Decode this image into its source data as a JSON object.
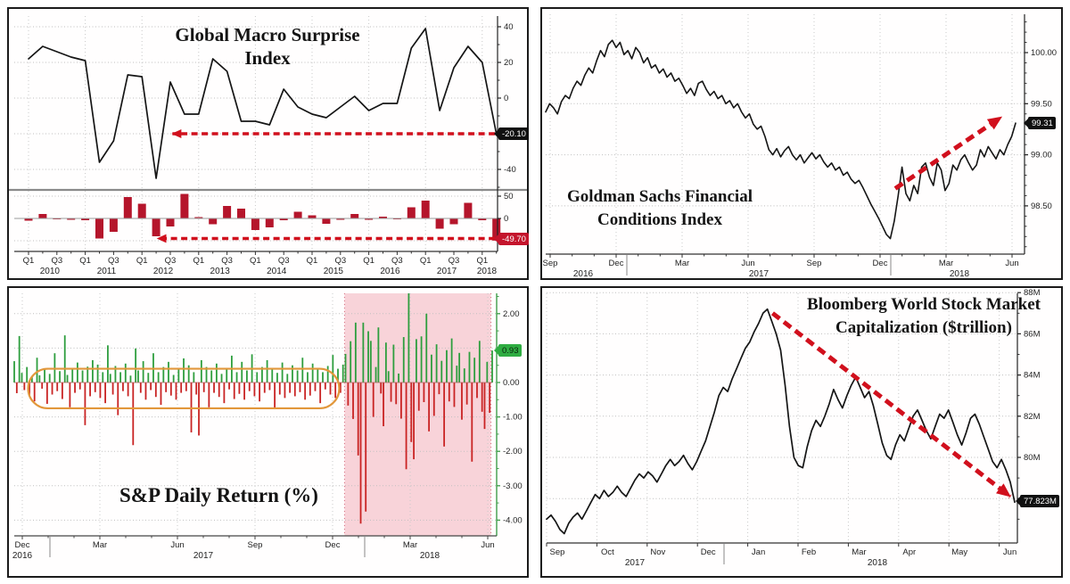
{
  "figure": {
    "background": "#ffffff",
    "panel_border": "#1b1b1b"
  },
  "chart_data": [
    {
      "id": "global-macro-surprise",
      "type": "line+bar",
      "title": "Global Macro Surprise Index",
      "line_color": "#151515",
      "bar_color": "#b5152b",
      "arrow_color": "#d1101d",
      "x_quarters": [
        "2010Q1",
        "2010Q2",
        "2010Q3",
        "2010Q4",
        "2011Q1",
        "2011Q2",
        "2011Q3",
        "2011Q4",
        "2012Q1",
        "2012Q2",
        "2012Q3",
        "2012Q4",
        "2013Q1",
        "2013Q2",
        "2013Q3",
        "2013Q4",
        "2014Q1",
        "2014Q2",
        "2014Q3",
        "2014Q4",
        "2015Q1",
        "2015Q2",
        "2015Q3",
        "2015Q4",
        "2016Q1",
        "2016Q2",
        "2016Q3",
        "2016Q4",
        "2017Q1",
        "2017Q2",
        "2017Q3",
        "2017Q4",
        "2018Q1",
        "2018Q2"
      ],
      "x_tick_sequence": [
        "Q1",
        "Q3",
        "Q1",
        "Q3",
        "Q1",
        "Q3",
        "Q1",
        "Q3",
        "Q1",
        "Q3",
        "Q1",
        "Q3",
        "Q1",
        "Q3",
        "Q1",
        "Q3",
        "Q1"
      ],
      "years": [
        "2010",
        "2011",
        "2012",
        "2013",
        "2014",
        "2015",
        "2016",
        "2017",
        "2018"
      ],
      "line": {
        "values": [
          22,
          29,
          26,
          23,
          21,
          -36,
          -24,
          13,
          12,
          -45,
          9,
          -9,
          -9,
          22,
          15,
          -13,
          -13,
          -15,
          5,
          -5,
          -9,
          -11,
          -5,
          1,
          -7,
          -3,
          -3,
          28,
          39,
          -7,
          17,
          29,
          20,
          -20.1
        ],
        "ylim": [
          -50,
          46
        ],
        "yticks": [
          {
            "v": 40,
            "label": "40"
          },
          {
            "v": 20,
            "label": "20"
          },
          {
            "v": 0,
            "label": "0"
          },
          {
            "v": -20,
            "label": ""
          },
          {
            "v": -40,
            "label": "-40"
          }
        ],
        "last_value": -20.1,
        "last_label": "-20.10"
      },
      "bars": {
        "values": [
          -5,
          10,
          -2,
          -3,
          -4,
          -45,
          -30,
          48,
          33,
          -40,
          -18,
          55,
          3,
          -13,
          28,
          22,
          -26,
          -20,
          -4,
          15,
          7,
          -12,
          -3,
          10,
          -3,
          4,
          -2,
          25,
          40,
          -23,
          -13,
          35,
          -4,
          -49.7
        ],
        "ylim": [
          -74,
          58
        ],
        "yticks": [
          {
            "v": 50,
            "label": "50"
          },
          {
            "v": 0,
            "label": "0"
          },
          {
            "v": -50,
            "label": ""
          }
        ],
        "last_value": -49.7,
        "last_label": "-49.70"
      },
      "arrows": [
        {
          "target": "line",
          "y": -20,
          "x_from_q": 32.9,
          "x_to_q": 10.15
        },
        {
          "target": "bars",
          "y": -45,
          "x_from_q": 32.9,
          "x_to_q": 9.1
        }
      ]
    },
    {
      "id": "goldman-financial-conditions",
      "type": "line",
      "title_lines": [
        "Goldman Sachs Financial",
        "Conditions Index"
      ],
      "line_color": "#151515",
      "arrow_color": "#d1101d",
      "values": [
        99.42,
        99.5,
        99.46,
        99.4,
        99.52,
        99.58,
        99.55,
        99.65,
        99.72,
        99.68,
        99.78,
        99.85,
        99.8,
        99.92,
        100.02,
        99.96,
        100.08,
        100.12,
        100.05,
        100.1,
        99.98,
        100.02,
        99.94,
        100.05,
        100.0,
        99.9,
        99.95,
        99.85,
        99.88,
        99.8,
        99.84,
        99.76,
        99.8,
        99.72,
        99.75,
        99.68,
        99.6,
        99.65,
        99.58,
        99.7,
        99.72,
        99.64,
        99.58,
        99.62,
        99.55,
        99.58,
        99.5,
        99.53,
        99.46,
        99.5,
        99.42,
        99.36,
        99.4,
        99.3,
        99.25,
        99.28,
        99.18,
        99.05,
        99.0,
        99.06,
        98.98,
        99.04,
        99.08,
        99.0,
        98.95,
        99.0,
        98.92,
        98.97,
        99.02,
        98.96,
        99.0,
        98.93,
        98.88,
        98.92,
        98.85,
        98.88,
        98.8,
        98.83,
        98.76,
        98.72,
        98.75,
        98.68,
        98.6,
        98.52,
        98.45,
        98.38,
        98.3,
        98.22,
        98.18,
        98.35,
        98.6,
        98.88,
        98.62,
        98.55,
        98.7,
        98.62,
        98.88,
        98.92,
        98.78,
        98.7,
        98.92,
        98.85,
        98.65,
        98.72,
        98.9,
        98.85,
        98.95,
        99.0,
        98.92,
        98.85,
        98.9,
        99.05,
        98.98,
        99.08,
        99.02,
        98.96,
        99.05,
        99.0,
        99.1,
        99.18,
        99.31
      ],
      "ylim": [
        98.02,
        100.38
      ],
      "yticks": [
        {
          "v": 100.0,
          "label": "100.00"
        },
        {
          "v": 99.5,
          "label": "99.50"
        },
        {
          "v": 99.0,
          "label": "99.00"
        },
        {
          "v": 98.5,
          "label": "98.50"
        }
      ],
      "x_ticks": [
        "Sep",
        "Dec",
        "Mar",
        "Jun",
        "Sep",
        "Dec",
        "Mar",
        "Jun"
      ],
      "years": [
        "2016",
        "2017",
        "2018"
      ],
      "last_value": 99.31,
      "last_label": "99.31",
      "arrow": {
        "from": [
          0.73,
          98.67
        ],
        "to": [
          0.952,
          99.37
        ]
      }
    },
    {
      "id": "sp-daily-return",
      "type": "bar",
      "title": "S&P Daily Return (%)",
      "positive_color": "#2e9e3e",
      "negative_color": "#c92323",
      "axis_color": "#3f9e4a",
      "values": [
        0.62,
        -0.31,
        1.35,
        0.28,
        -0.22,
        0.45,
        -0.38,
        0.18,
        -0.55,
        0.72,
        0.21,
        -0.18,
        0.38,
        -0.62,
        0.25,
        -0.35,
        0.85,
        -0.25,
        0.33,
        -0.48,
        1.37,
        0.22,
        -0.72,
        0.41,
        -0.3,
        0.58,
        -0.2,
        0.35,
        -1.24,
        0.46,
        -0.4,
        0.65,
        -0.28,
        0.52,
        -0.45,
        0.3,
        -0.6,
        1.08,
        0.25,
        -0.35,
        0.48,
        -0.95,
        0.3,
        -0.25,
        0.55,
        -0.4,
        0.2,
        -1.82,
        0.99,
        0.35,
        -0.3,
        0.62,
        -0.5,
        0.28,
        -0.22,
        0.85,
        -0.42,
        0.3,
        -0.65,
        0.45,
        -0.28,
        0.6,
        -0.38,
        0.22,
        -0.5,
        0.4,
        -0.3,
        0.7,
        -0.25,
        0.5,
        -1.45,
        0.3,
        -0.35,
        -1.54,
        0.65,
        -0.28,
        0.45,
        -0.72,
        0.35,
        -0.3,
        0.55,
        -0.42,
        0.25,
        -0.6,
        0.4,
        -0.2,
        0.78,
        -0.48,
        0.3,
        -0.33,
        0.6,
        -0.5,
        0.35,
        -0.25,
        0.82,
        -0.4,
        0.3,
        -0.55,
        0.45,
        -0.3,
        0.65,
        -0.22,
        0.4,
        -0.75,
        0.28,
        -0.35,
        0.58,
        -0.45,
        0.25,
        -0.3,
        0.5,
        -0.4,
        0.35,
        -0.28,
        0.72,
        -0.5,
        0.3,
        -0.38,
        0.55,
        -0.25,
        0.42,
        -0.6,
        0.3,
        -0.2,
        0.48,
        -0.35,
        0.8,
        -0.45,
        0.4,
        -0.3,
        0.52,
        0.83,
        -0.67,
        1.2,
        -1.06,
        1.74,
        -2.12,
        -4.1,
        1.74,
        -3.75,
        1.49,
        1.21,
        -1.0,
        0.45,
        1.6,
        -0.32,
        -1.27,
        1.16,
        0.33,
        -0.56,
        1.1,
        -0.63,
        0.26,
        -1.05,
        1.32,
        -2.52,
        2.72,
        -1.73,
        -2.23,
        1.26,
        -0.82,
        1.34,
        -0.57,
        2.0,
        -1.42,
        0.81,
        -0.97,
        1.11,
        -0.34,
        0.63,
        -1.86,
        0.94,
        -0.55,
        1.28,
        -0.71,
        0.49,
        0.86,
        -1.08,
        0.41,
        -0.64,
        0.89,
        -2.3,
        0.72,
        -0.45,
        1.21,
        -0.85,
        -1.35,
        0.6,
        -0.88,
        0.93
      ],
      "ylim": [
        -4.46,
        2.59
      ],
      "yticks": [
        {
          "v": 2,
          "label": "2.00"
        },
        {
          "v": 1,
          "label": ""
        },
        {
          "v": 0,
          "label": "0.00"
        },
        {
          "v": -1,
          "label": "-1.00"
        },
        {
          "v": -2,
          "label": "-2.00"
        },
        {
          "v": -3,
          "label": "-3.00"
        },
        {
          "v": -4,
          "label": "-4.00"
        }
      ],
      "x_ticks": [
        "Dec",
        "Mar",
        "Jun",
        "Sep",
        "Dec",
        "Mar",
        "Jun"
      ],
      "years": [
        "2016",
        "2017",
        "2018"
      ],
      "last_value": 0.93,
      "last_label": "0.93",
      "highlight_region": {
        "from_index": 130.6,
        "to_index": 188.5,
        "color": "#f8d3d9",
        "border_color": "#d46a7a"
      },
      "callout_box": {
        "from_index": 5.5,
        "to_index": 128.5,
        "y_top": 0.4,
        "y_bottom": -0.75,
        "color": "#e2973b"
      }
    },
    {
      "id": "bloomberg-world-market-cap",
      "type": "line",
      "title_lines": [
        "Bloomberg World Stock Market",
        "Capitalization ($trillion)"
      ],
      "line_color": "#151515",
      "arrow_color": "#d1101d",
      "values": [
        77.0,
        77.2,
        76.9,
        76.5,
        76.3,
        76.8,
        77.1,
        77.3,
        77.0,
        77.4,
        77.8,
        78.2,
        78.0,
        78.4,
        78.1,
        78.3,
        78.6,
        78.3,
        78.1,
        78.5,
        78.9,
        79.2,
        79.0,
        79.3,
        79.1,
        78.8,
        79.2,
        79.6,
        79.9,
        79.6,
        79.8,
        80.1,
        79.7,
        79.4,
        79.8,
        80.3,
        80.8,
        81.5,
        82.2,
        83.0,
        83.4,
        83.2,
        83.8,
        84.3,
        84.8,
        85.3,
        85.6,
        86.1,
        86.5,
        87.0,
        87.2,
        86.6,
        86.0,
        85.2,
        83.5,
        81.5,
        80.0,
        79.6,
        79.5,
        80.5,
        81.3,
        81.8,
        81.5,
        82.0,
        82.6,
        83.3,
        82.8,
        82.4,
        83.0,
        83.5,
        83.9,
        83.4,
        82.9,
        83.2,
        82.5,
        81.6,
        80.7,
        80.1,
        79.9,
        80.6,
        81.1,
        80.8,
        81.4,
        82.0,
        82.3,
        81.8,
        81.3,
        80.9,
        81.5,
        82.1,
        81.9,
        82.3,
        81.7,
        81.1,
        80.6,
        81.2,
        81.9,
        82.1,
        81.6,
        81.0,
        80.4,
        79.8,
        79.5,
        79.9,
        79.4,
        78.8,
        77.823
      ],
      "ylim": [
        75.84,
        87.96
      ],
      "yticks": [
        {
          "v": 88,
          "label": "88M"
        },
        {
          "v": 86,
          "label": "86M"
        },
        {
          "v": 84,
          "label": "84M"
        },
        {
          "v": 82,
          "label": "82M"
        },
        {
          "v": 80,
          "label": "80M"
        },
        {
          "v": 78,
          "label": ""
        }
      ],
      "x_ticks": [
        "Sep",
        "Oct",
        "Nov",
        "Dec",
        "Jan",
        "Feb",
        "Mar",
        "Apr",
        "May",
        "Jun"
      ],
      "years": [
        "2017",
        "2018"
      ],
      "last_value": 77.823,
      "last_label": "77.823M",
      "arrow": {
        "from": [
          0.48,
          87.0
        ],
        "to": [
          0.985,
          78.1
        ]
      }
    }
  ]
}
